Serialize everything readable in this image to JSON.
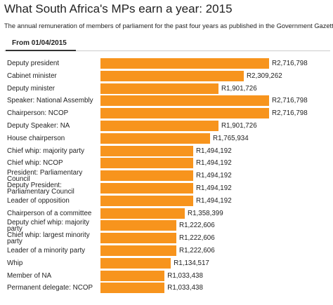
{
  "chart_data": {
    "type": "bar",
    "orientation": "horizontal",
    "title": "What South Africa's MPs earn a year: 2015",
    "subtitle": "The annual remuneration of members of parliament for the past four years as published in the Government Gazette",
    "tab": "From 01/04/2015",
    "color": "#f7941d",
    "categories": [
      "Deputy president",
      "Cabinet minister",
      "Deputy minister",
      "Speaker: National Assembly",
      "Chairperson: NCOP",
      "Deputy Speaker: NA",
      "House chairperson",
      "Chief whip: majority party",
      "Chief whip: NCOP",
      "President: Parliamentary Council",
      "Deputy President: Parliamentary Council",
      "Leader of opposition",
      "Chairperson of a committee",
      "Deputy chief whip: majority party",
      "Chief whip: largest minority party",
      "Leader of a minority party",
      "Whip",
      "Member of NA",
      "Permanent delegate: NCOP"
    ],
    "values": [
      2716798,
      2309262,
      1901726,
      2716798,
      2716798,
      1901726,
      1765934,
      1494192,
      1494192,
      1494192,
      1494192,
      1494192,
      1358399,
      1222606,
      1222606,
      1222606,
      1134517,
      1033438,
      1033438
    ],
    "value_labels": [
      "R2,716,798",
      "R2,309,262",
      "R1,901,726",
      "R2,716,798",
      "R2,716,798",
      "R1,901,726",
      "R1,765,934",
      "R1,494,192",
      "R1,494,192",
      "R1,494,192",
      "R1,494,192",
      "R1,494,192",
      "R1,358,399",
      "R1,222,606",
      "R1,222,606",
      "R1,222,606",
      "R1,134,517",
      "R1,033,438",
      "R1,033,438"
    ]
  }
}
